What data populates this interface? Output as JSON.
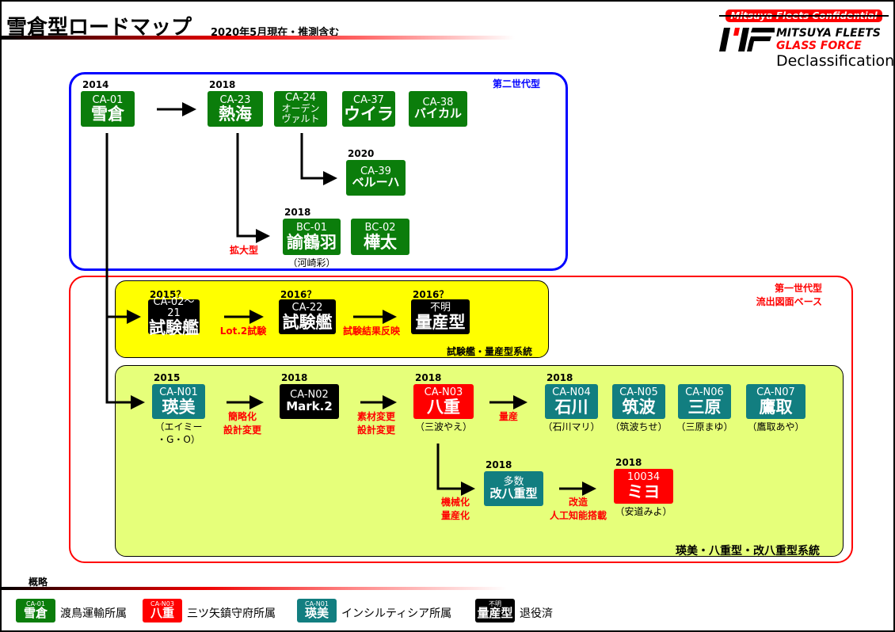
{
  "header": {
    "title": "雪倉型ロードマップ",
    "subtitle": "2020年5月現在・推測含む"
  },
  "logo": {
    "confidential": "Mitsuya Fleets Confidential",
    "line1": "MITSUYA FLEETS",
    "line2": "GLASS FORCE",
    "line3": "Declassification"
  },
  "colors": {
    "green": "#0b7d0b",
    "teal": "#127e80",
    "black": "#000000",
    "red": "#ff0000",
    "gen2_border": "#0000ff",
    "gen1_border": "#ff0000",
    "trial_bg": "#ffff00",
    "series_bg": "#e6ff7a"
  },
  "groups": {
    "gen2": "第二世代型",
    "gen1_l1": "第一世代型",
    "gen1_l2": "流出図面ベース",
    "trial": "試験艦・量産型系統",
    "series": "瑛美・八重型・改八重型系統"
  },
  "nodes": [
    {
      "id": "ca01",
      "color": "green",
      "year": "2014",
      "code": "CA-01",
      "name": "雪倉"
    },
    {
      "id": "ca23",
      "color": "green",
      "year": "2018",
      "code": "CA-23",
      "name": "熱海"
    },
    {
      "id": "ca24",
      "color": "green",
      "code": "CA-24",
      "name": "オーデン\nヴァルト"
    },
    {
      "id": "ca37",
      "color": "green",
      "code": "CA-37",
      "name": "ウイラ"
    },
    {
      "id": "ca38",
      "color": "green",
      "code": "CA-38",
      "name": "バイカル"
    },
    {
      "id": "ca39",
      "color": "green",
      "year": "2020",
      "code": "CA-39",
      "name": "ベルーハ"
    },
    {
      "id": "bc01",
      "color": "green",
      "year": "2018",
      "code": "BC-01",
      "name": "諭鶴羽",
      "sub": "（河崎彩）"
    },
    {
      "id": "bc02",
      "color": "green",
      "code": "BC-02",
      "name": "樺太"
    },
    {
      "id": "ca02",
      "color": "black",
      "year": "2015？",
      "code": "CA-02～21",
      "name": "試験艦"
    },
    {
      "id": "ca22",
      "color": "black",
      "year": "2016？",
      "code": "CA-22",
      "name": "試験艦"
    },
    {
      "id": "unk",
      "color": "black",
      "year": "2016？",
      "code": "不明",
      "name": "量産型"
    },
    {
      "id": "n01",
      "color": "teal",
      "year": "2015",
      "code": "CA-N01",
      "name": "瑛美",
      "sub": "（エイミー\n・G・O）"
    },
    {
      "id": "n02",
      "color": "black",
      "year": "2018",
      "code": "CA-N02",
      "name": "Mark.2"
    },
    {
      "id": "n03",
      "color": "red",
      "year": "2018",
      "code": "CA-N03",
      "name": "八重",
      "sub": "（三波やえ）"
    },
    {
      "id": "n04",
      "color": "teal",
      "year": "2018",
      "code": "CA-N04",
      "name": "石川",
      "sub": "（石川マリ）"
    },
    {
      "id": "n05",
      "color": "teal",
      "code": "CA-N05",
      "name": "筑波",
      "sub": "（筑波ちせ）"
    },
    {
      "id": "n06",
      "color": "teal",
      "code": "CA-N06",
      "name": "三原",
      "sub": "（三原まゆ）"
    },
    {
      "id": "n07",
      "color": "teal",
      "code": "CA-N07",
      "name": "鷹取",
      "sub": "（鷹取あや）"
    },
    {
      "id": "kai",
      "color": "teal",
      "year": "2018",
      "code": "多数",
      "name": "改八重型"
    },
    {
      "id": "miyo",
      "color": "red",
      "year": "2018",
      "code": "10034",
      "name": "ミヨ",
      "sub": "（安道みよ）"
    }
  ],
  "annotations": [
    {
      "id": "a1",
      "text": "拡大型"
    },
    {
      "id": "a2",
      "text": "Lot.2試験"
    },
    {
      "id": "a3",
      "text": "試験結果反映"
    },
    {
      "id": "a4",
      "text": "簡略化\n設計変更"
    },
    {
      "id": "a5",
      "text": "素材変更\n設計変更"
    },
    {
      "id": "a6",
      "text": "量産"
    },
    {
      "id": "a7",
      "text": "機械化\n量産化"
    },
    {
      "id": "a8",
      "text": "改造\n人工知能搭載"
    }
  ],
  "legend": {
    "title": "概略",
    "items": [
      {
        "color": "green",
        "code": "CA-01",
        "name": "雪倉",
        "label": "渡鳥運輸所属"
      },
      {
        "color": "red",
        "code": "CA-N03",
        "name": "八重",
        "label": "三ツ矢鎮守府所属"
      },
      {
        "color": "teal",
        "code": "CA-N01",
        "name": "瑛美",
        "label": "インシルティシア所属"
      },
      {
        "color": "black",
        "code": "不明",
        "name": "量産型",
        "label": "退役済"
      }
    ]
  }
}
